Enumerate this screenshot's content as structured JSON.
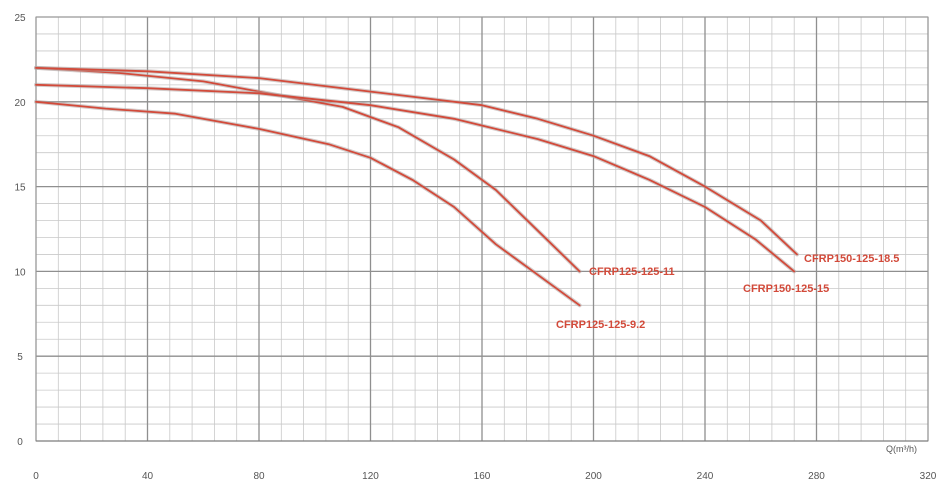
{
  "chart_data": {
    "type": "line",
    "title": "",
    "xlabel": "Q(m³/h)",
    "ylabel": "",
    "xlim": [
      0,
      320
    ],
    "ylim": [
      0,
      25
    ],
    "x_major_ticks": [
      0,
      40,
      80,
      120,
      160,
      200,
      240,
      280,
      320
    ],
    "y_major_ticks": [
      0,
      5,
      10,
      15,
      20,
      25
    ],
    "grid": true,
    "grid_minor_x_step": 8,
    "grid_minor_y_step": 1,
    "line_color": "#d24a3a",
    "label_color": "#d24a3a",
    "series": [
      {
        "name": "CFRP125-125-9.2",
        "points": [
          [
            0,
            20
          ],
          [
            25,
            19.6
          ],
          [
            50,
            19.3
          ],
          [
            80,
            18.4
          ],
          [
            105,
            17.5
          ],
          [
            120,
            16.7
          ],
          [
            135,
            15.4
          ],
          [
            150,
            13.8
          ],
          [
            165,
            11.6
          ],
          [
            180,
            9.8
          ],
          [
            195,
            8
          ]
        ]
      },
      {
        "name": "CFRP125-125-11",
        "points": [
          [
            0,
            22
          ],
          [
            30,
            21.7
          ],
          [
            60,
            21.2
          ],
          [
            90,
            20.3
          ],
          [
            110,
            19.7
          ],
          [
            130,
            18.5
          ],
          [
            150,
            16.6
          ],
          [
            165,
            14.8
          ],
          [
            180,
            12.4
          ],
          [
            195,
            10
          ]
        ]
      },
      {
        "name": "CFRP150-125-15",
        "points": [
          [
            0,
            21
          ],
          [
            40,
            20.8
          ],
          [
            80,
            20.5
          ],
          [
            120,
            19.8
          ],
          [
            150,
            19
          ],
          [
            180,
            17.8
          ],
          [
            200,
            16.8
          ],
          [
            220,
            15.4
          ],
          [
            240,
            13.8
          ],
          [
            258,
            11.9
          ],
          [
            272,
            10
          ]
        ]
      },
      {
        "name": "CFRP150-125-18.5",
        "points": [
          [
            0,
            22
          ],
          [
            40,
            21.8
          ],
          [
            80,
            21.4
          ],
          [
            120,
            20.6
          ],
          [
            160,
            19.8
          ],
          [
            180,
            19
          ],
          [
            200,
            18
          ],
          [
            220,
            16.8
          ],
          [
            240,
            15
          ],
          [
            260,
            13
          ],
          [
            273,
            11
          ]
        ]
      }
    ]
  }
}
